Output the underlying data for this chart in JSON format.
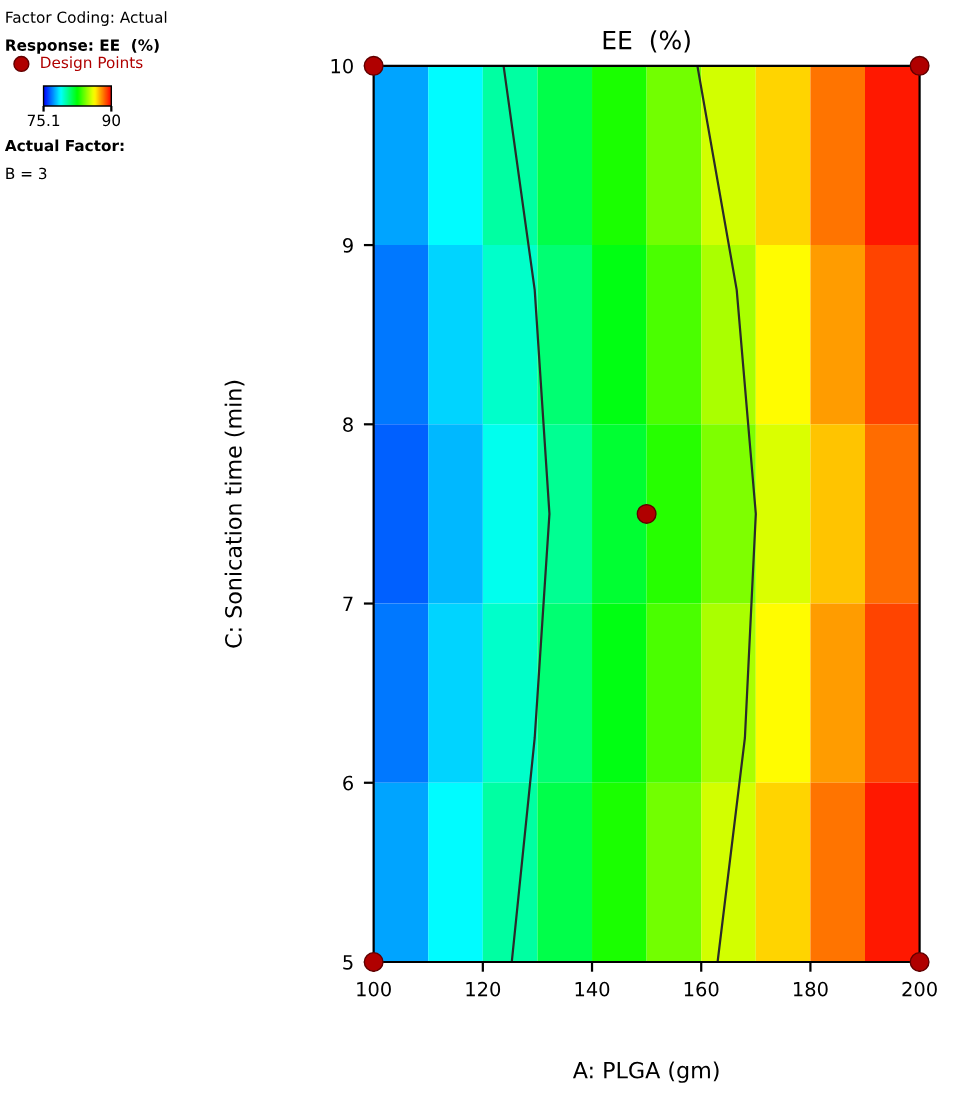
{
  "chart_data": {
    "type": "heatmap",
    "title": "EE  (%)",
    "xlabel": "A: PLGA (gm)",
    "ylabel": "C: Sonication time (min)",
    "x": [
      105,
      115,
      125,
      135,
      145,
      155,
      165,
      175,
      185,
      195
    ],
    "y": [
      9.5,
      8.5,
      7.5,
      6.5,
      5.5
    ],
    "cells": [
      [
        77.5,
        78.8,
        80.2,
        81.5,
        82.9,
        84.2,
        85.6,
        86.9,
        88.3,
        89.6
      ],
      [
        76.9,
        78.2,
        79.6,
        80.9,
        82.3,
        83.6,
        85.0,
        86.3,
        87.7,
        89.0
      ],
      [
        76.5,
        77.8,
        79.1,
        80.4,
        81.8,
        83.1,
        84.4,
        85.7,
        87.1,
        88.4
      ],
      [
        76.9,
        78.2,
        79.6,
        80.9,
        82.3,
        83.6,
        85.0,
        86.3,
        87.7,
        89.0
      ],
      [
        77.5,
        78.8,
        80.2,
        81.5,
        82.9,
        84.2,
        85.6,
        86.9,
        88.3,
        89.6
      ]
    ],
    "clim": [
      75.1,
      90
    ],
    "cticks": [
      75.1,
      90
    ],
    "clabel": "Response: EE  (%)",
    "xlim": [
      100,
      200
    ],
    "ylim": [
      5,
      10
    ],
    "xticks": [
      100,
      120,
      140,
      160,
      180,
      200
    ],
    "yticks": [
      5,
      6,
      7,
      8,
      9,
      10
    ],
    "series": [
      {
        "type": "line",
        "color": "#2a2a2a",
        "x": [
          125.3,
          129.5,
          132.2,
          129.5,
          123.8
        ],
        "values": [
          5,
          6.25,
          7.5,
          8.75,
          10
        ]
      },
      {
        "type": "line",
        "color": "#2a2a2a",
        "x": [
          163.0,
          168.0,
          170.0,
          166.5,
          159.3
        ],
        "values": [
          5,
          6.25,
          7.5,
          8.75,
          10
        ]
      },
      {
        "type": "scatter",
        "name": "Design Points",
        "color": "#b00000",
        "x": [
          100,
          200,
          100,
          200,
          150
        ],
        "values": [
          10,
          10,
          5,
          5,
          7.5
        ]
      }
    ],
    "legend": "top left",
    "grid": false,
    "annotations": [
      "Factor Coding: Actual",
      "Actual Factor:",
      "B = 3"
    ]
  }
}
